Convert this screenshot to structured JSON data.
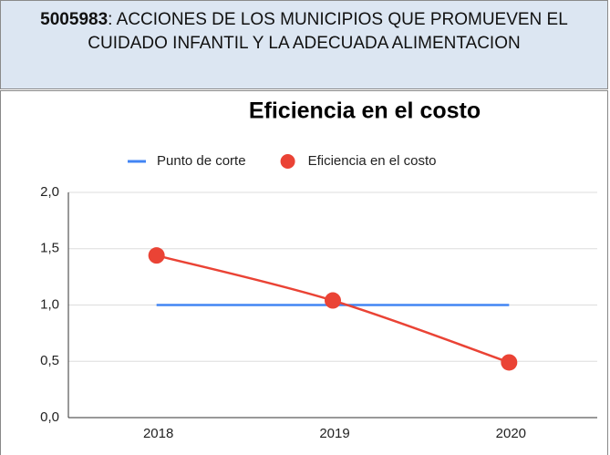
{
  "header": {
    "code": "5005983",
    "text": ": ACCIONES DE LOS MUNICIPIOS QUE PROMUEVEN EL CUIDADO INFANTIL Y LA ADECUADA ALIMENTACION"
  },
  "chart_data": {
    "type": "line",
    "title": "Eficiencia en el costo",
    "categories": [
      "2018",
      "2019",
      "2020"
    ],
    "series": [
      {
        "name": "Punto de corte",
        "color": "#4285f4",
        "values": [
          1.0,
          1.0,
          1.0
        ]
      },
      {
        "name": "Eficiencia en el costo",
        "color": "#ea4335",
        "values": [
          1.44,
          1.04,
          0.49
        ],
        "markers": true
      }
    ],
    "ylim": [
      0,
      2
    ],
    "yticks": [
      {
        "value": 0,
        "label": "0,0"
      },
      {
        "value": 0.5,
        "label": "0,5"
      },
      {
        "value": 1,
        "label": "1,0"
      },
      {
        "value": 1.5,
        "label": "1,5"
      },
      {
        "value": 2,
        "label": "2,0"
      }
    ],
    "grid": true,
    "legend": "top"
  }
}
